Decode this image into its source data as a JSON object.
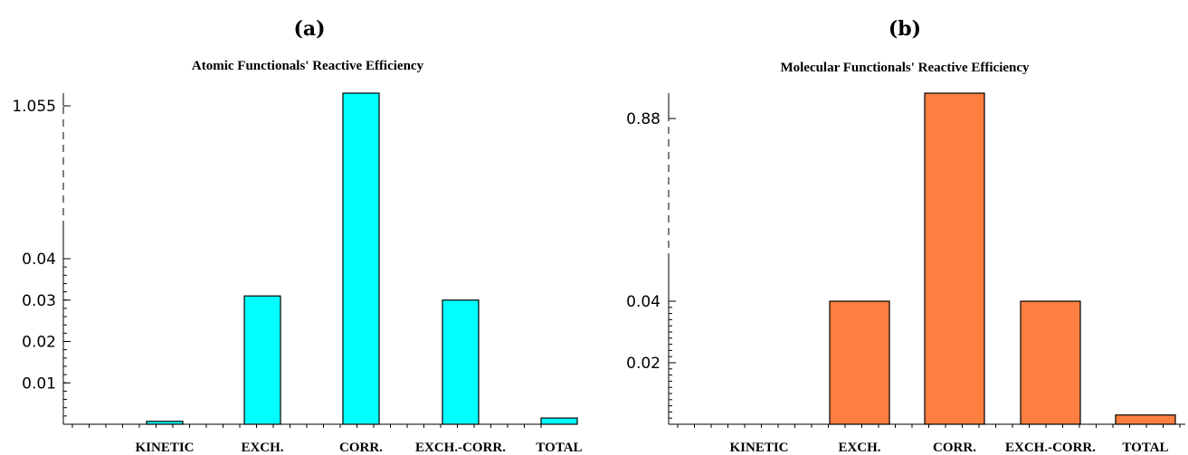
{
  "chart_data": [
    {
      "type": "bar",
      "panel_label": "(a)",
      "title": "Atomic Functionals' Reactive Efficiency",
      "categories": [
        "KINETIC",
        "EXCH.",
        "CORR.",
        "EXCH.-CORR.",
        "TOTAL"
      ],
      "values": [
        0.0007,
        0.031,
        1.055,
        0.03,
        0.0015
      ],
      "ytick_labels": [
        "0.01",
        "0.02",
        "0.03",
        "0.04",
        "1.055"
      ],
      "y_axis_break": true,
      "color": "#00ffff",
      "grid": false
    },
    {
      "type": "bar",
      "panel_label": "(b)",
      "title": "Molecular Functionals' Reactive Efficiency",
      "categories": [
        "KINETIC",
        "EXCH.",
        "CORR.",
        "EXCH.-CORR.",
        "TOTAL"
      ],
      "values": [
        0.0,
        0.04,
        0.88,
        0.04,
        0.003
      ],
      "ytick_labels": [
        "0.02",
        "0.04",
        "0.88"
      ],
      "y_axis_break": true,
      "color": "#ff7f40",
      "grid": false
    }
  ]
}
